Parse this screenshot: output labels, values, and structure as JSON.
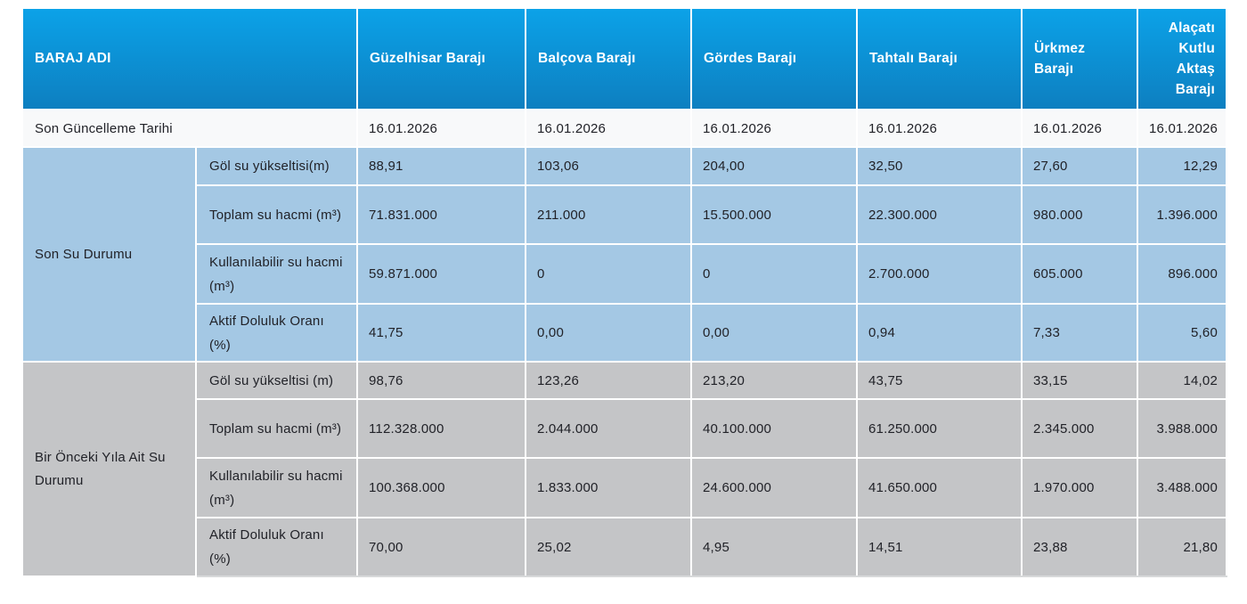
{
  "colors": {
    "header-top": "#0CA2E8",
    "header-bottom": "#0D7FC0",
    "section-blue": "#A4C8E4",
    "section-gray": "#C4C5C7",
    "update-row-bg": "#F8F9FA",
    "text-dark": "#212228",
    "header-text": "#FFFFFF"
  },
  "table": {
    "header": {
      "baraj_adi": "BARAJ ADI",
      "dams": [
        "Güzelhisar Barajı",
        "Balçova Barajı",
        "Gördes Barajı",
        "Tahtalı Barajı",
        "Ürkmez Barajı",
        "Alaçatı Kutlu Aktaş Barajı"
      ]
    },
    "update_row": {
      "label": "Son Güncelleme Tarihi",
      "dates": [
        "16.01.2026",
        "16.01.2026",
        "16.01.2026",
        "16.01.2026",
        "16.01.2026",
        "16.01.2026"
      ]
    },
    "sections": [
      {
        "title": "Son Su Durumu",
        "rows": [
          {
            "label": "Göl su yükseltisi(m)",
            "values": [
              "88,91",
              "103,06",
              "204,00",
              "32,50",
              "27,60",
              "12,29"
            ]
          },
          {
            "label": "Toplam su hacmi (m³)",
            "values": [
              "71.831.000",
              "211.000",
              "15.500.000",
              "22.300.000",
              "980.000",
              "1.396.000"
            ]
          },
          {
            "label": "Kullanılabilir su hacmi (m³)",
            "values": [
              "59.871.000",
              "0",
              "0",
              "2.700.000",
              "605.000",
              "896.000"
            ]
          },
          {
            "label": "Aktif Doluluk Oranı (%)",
            "values": [
              "41,75",
              "0,00",
              "0,00",
              "0,94",
              "7,33",
              "5,60"
            ]
          }
        ]
      },
      {
        "title": "Bir Önceki Yıla Ait Su Durumu",
        "rows": [
          {
            "label": "Göl su yükseltisi (m)",
            "values": [
              "98,76",
              "123,26",
              "213,20",
              "43,75",
              "33,15",
              "14,02"
            ]
          },
          {
            "label": "Toplam su hacmi (m³)",
            "values": [
              "112.328.000",
              "2.044.000",
              "40.100.000",
              "61.250.000",
              "2.345.000",
              "3.988.000"
            ]
          },
          {
            "label": "Kullanılabilir su hacmi (m³)",
            "values": [
              "100.368.000",
              "1.833.000",
              "24.600.000",
              "41.650.000",
              "1.970.000",
              "3.488.000"
            ]
          },
          {
            "label": "Aktif Doluluk Oranı (%)",
            "values": [
              "70,00",
              "25,02",
              "4,95",
              "14,51",
              "23,88",
              "21,80"
            ]
          }
        ]
      }
    ]
  }
}
